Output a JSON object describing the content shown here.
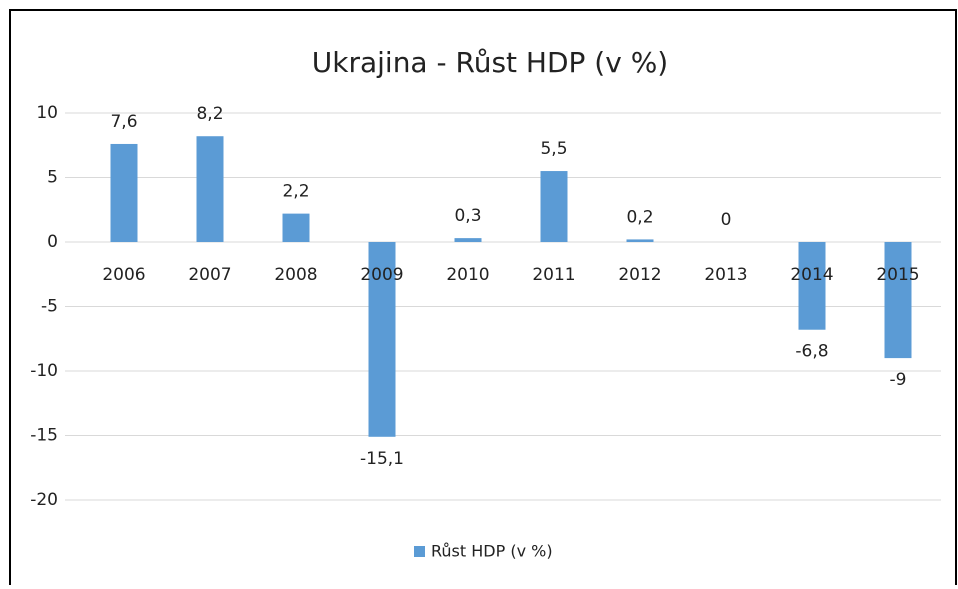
{
  "chart_data": {
    "type": "bar",
    "title": "Ukrajina - Růst HDP (v %)",
    "categories": [
      "2006",
      "2007",
      "2008",
      "2009",
      "2010",
      "2011",
      "2012",
      "2013",
      "2014",
      "2015"
    ],
    "series": [
      {
        "name": "Růst HDP (v %)",
        "color": "#5b9bd5",
        "values": [
          7.6,
          8.2,
          2.2,
          -15.1,
          0.3,
          5.5,
          0.2,
          0,
          -6.8,
          -9
        ],
        "value_labels": [
          "7,6",
          "8,2",
          "2,2",
          "-15,1",
          "0,3",
          "5,5",
          "0,2",
          "0",
          "-6,8",
          "-9"
        ]
      }
    ],
    "ylim": [
      -20,
      10
    ],
    "yticks": [
      10,
      5,
      0,
      -5,
      -10,
      -15,
      -20
    ],
    "grid": true,
    "legend": "bottom"
  }
}
